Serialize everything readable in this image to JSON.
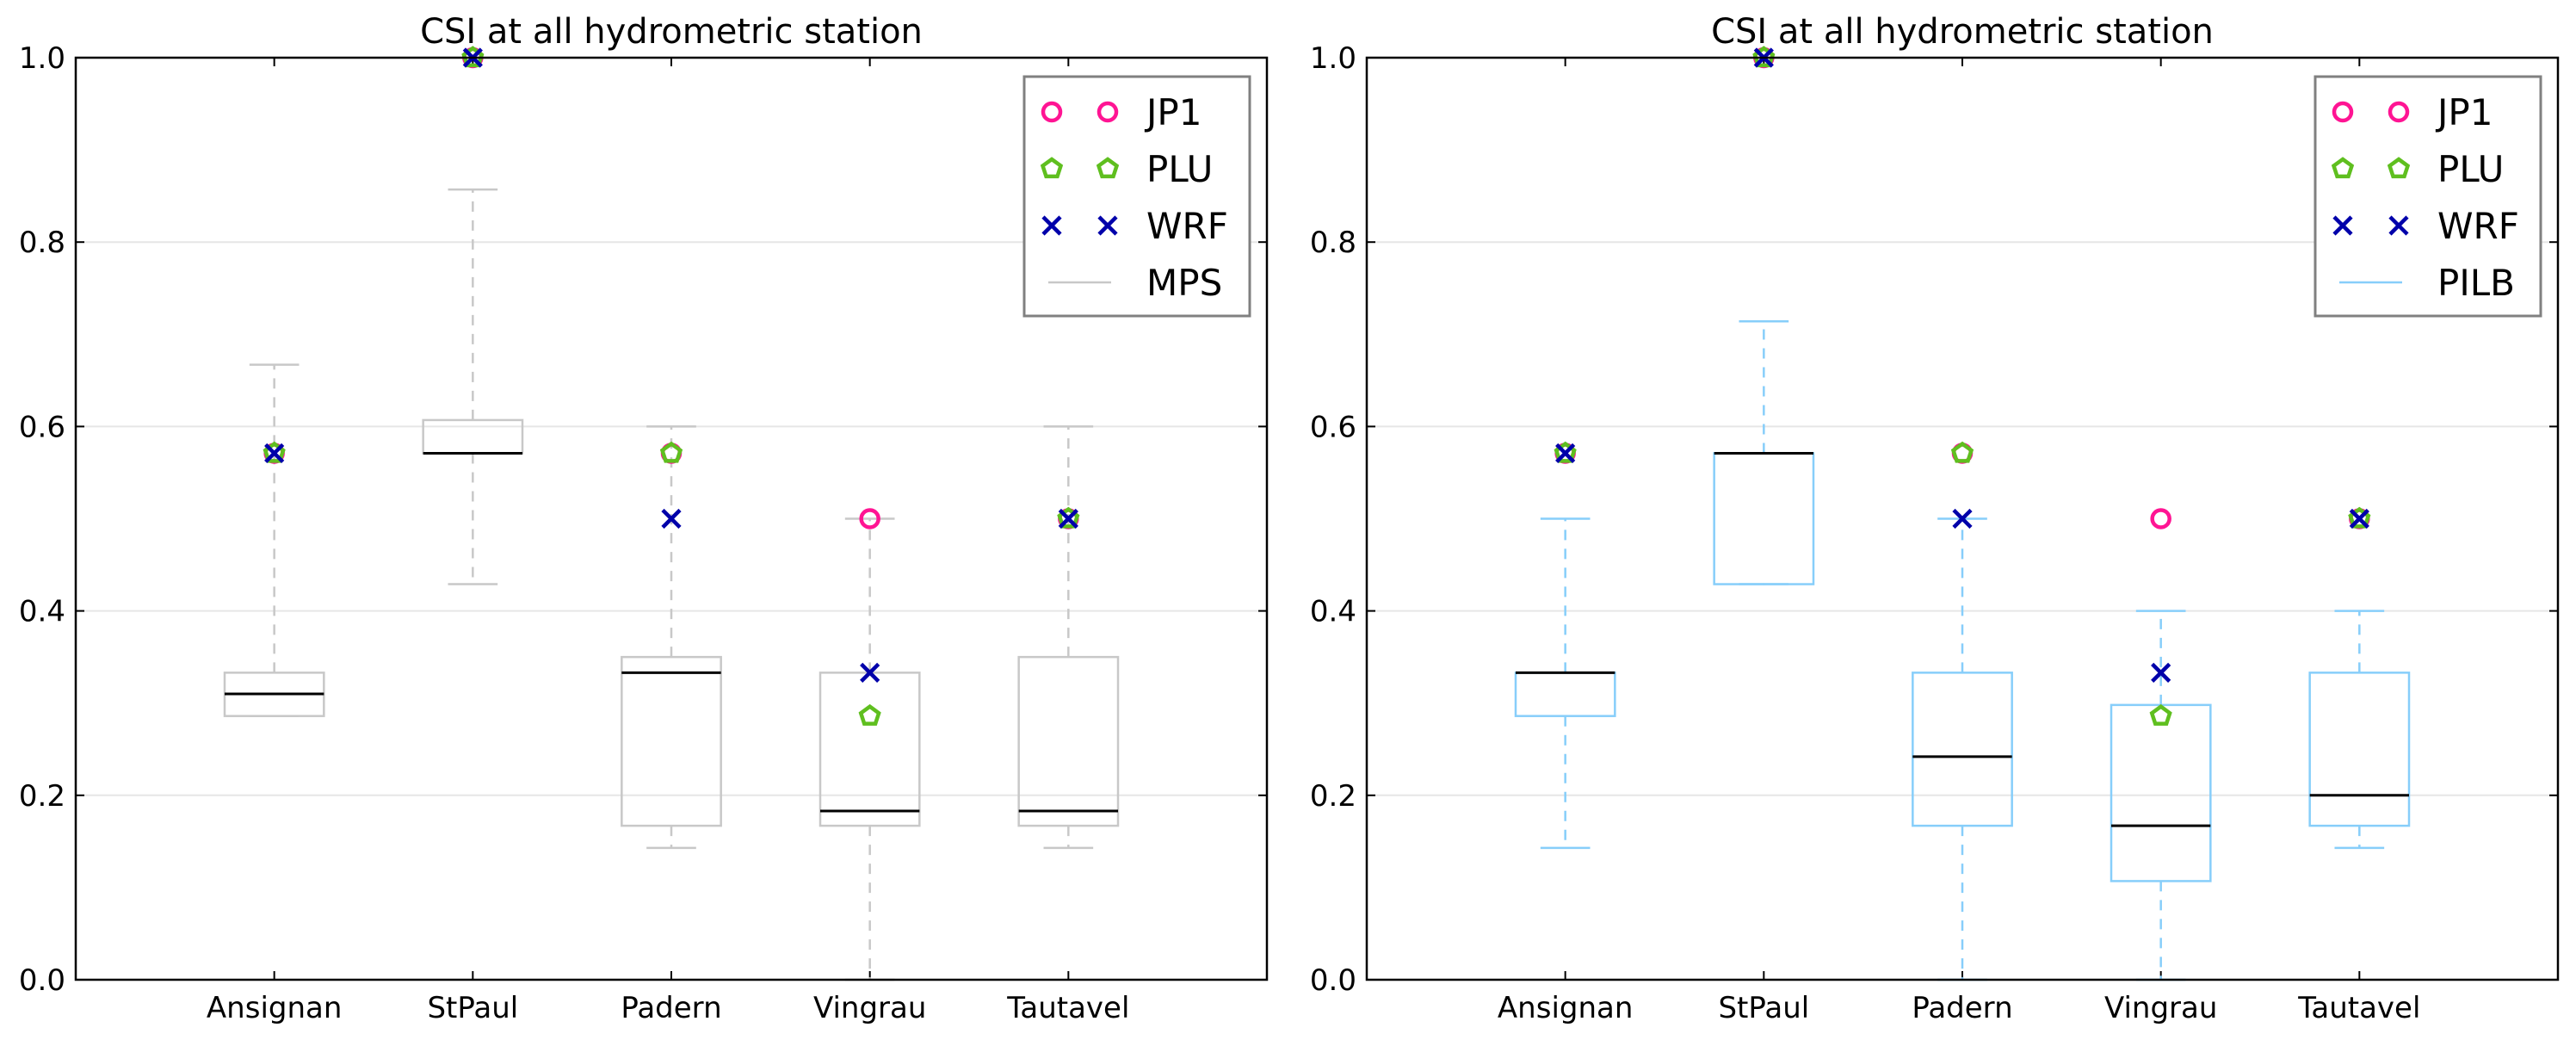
{
  "chart_data": [
    {
      "type": "box",
      "title": "CSI at all hydrometric station",
      "xlabel": "",
      "ylabel": "",
      "ylim": [
        0.0,
        1.0
      ],
      "yticks": [
        "0.0",
        "0.2",
        "0.4",
        "0.6",
        "0.8",
        "1.0"
      ],
      "grid": "horizontal",
      "categories": [
        "Ansignan",
        "StPaul",
        "Padern",
        "Vingrau",
        "Tautavel"
      ],
      "box_series": {
        "name": "MPS",
        "color": "#c8c8c8",
        "boxes": [
          {
            "whisker_low": 0.286,
            "q1": 0.286,
            "median": 0.31,
            "q3": 0.333,
            "whisker_high": 0.667
          },
          {
            "whisker_low": 0.429,
            "q1": 0.571,
            "median": 0.571,
            "q3": 0.607,
            "whisker_high": 0.857
          },
          {
            "whisker_low": 0.143,
            "q1": 0.167,
            "median": 0.333,
            "q3": 0.35,
            "whisker_high": 0.6
          },
          {
            "whisker_low": 0.0,
            "q1": 0.167,
            "median": 0.183,
            "q3": 0.333,
            "whisker_high": 0.5
          },
          {
            "whisker_low": 0.143,
            "q1": 0.167,
            "median": 0.183,
            "q3": 0.35,
            "whisker_high": 0.6
          }
        ]
      },
      "point_series": [
        {
          "name": "JP1",
          "marker": "circle",
          "color": "#ff1493",
          "values": [
            0.571,
            1.0,
            0.571,
            0.5,
            0.5
          ]
        },
        {
          "name": "PLU",
          "marker": "pentagon",
          "color": "#5fbf1f",
          "values": [
            0.571,
            1.0,
            0.571,
            0.286,
            0.5
          ]
        },
        {
          "name": "WRF",
          "marker": "x",
          "color": "#0000aa",
          "values": [
            0.571,
            1.0,
            0.5,
            0.333,
            0.5
          ]
        }
      ],
      "legend": {
        "placement": "top-right",
        "entries": [
          "JP1",
          "PLU",
          "WRF",
          "MPS"
        ]
      }
    },
    {
      "type": "box",
      "title": "CSI at all hydrometric station",
      "xlabel": "",
      "ylabel": "",
      "ylim": [
        0.0,
        1.0
      ],
      "yticks": [
        "0.0",
        "0.2",
        "0.4",
        "0.6",
        "0.8",
        "1.0"
      ],
      "grid": "horizontal",
      "categories": [
        "Ansignan",
        "StPaul",
        "Padern",
        "Vingrau",
        "Tautavel"
      ],
      "box_series": {
        "name": "PILB",
        "color": "#87cefa",
        "boxes": [
          {
            "whisker_low": 0.143,
            "q1": 0.286,
            "median": 0.333,
            "q3": 0.333,
            "whisker_high": 0.5
          },
          {
            "whisker_low": 0.429,
            "q1": 0.429,
            "median": 0.571,
            "q3": 0.571,
            "whisker_high": 0.714
          },
          {
            "whisker_low": 0.0,
            "q1": 0.167,
            "median": 0.242,
            "q3": 0.333,
            "whisker_high": 0.5
          },
          {
            "whisker_low": 0.0,
            "q1": 0.107,
            "median": 0.167,
            "q3": 0.298,
            "whisker_high": 0.4
          },
          {
            "whisker_low": 0.143,
            "q1": 0.167,
            "median": 0.2,
            "q3": 0.333,
            "whisker_high": 0.4
          }
        ]
      },
      "point_series": [
        {
          "name": "JP1",
          "marker": "circle",
          "color": "#ff1493",
          "values": [
            0.571,
            1.0,
            0.571,
            0.5,
            0.5
          ]
        },
        {
          "name": "PLU",
          "marker": "pentagon",
          "color": "#5fbf1f",
          "values": [
            0.571,
            1.0,
            0.571,
            0.286,
            0.5
          ]
        },
        {
          "name": "WRF",
          "marker": "x",
          "color": "#0000aa",
          "values": [
            0.571,
            1.0,
            0.5,
            0.333,
            0.5
          ]
        }
      ],
      "legend": {
        "placement": "top-right",
        "entries": [
          "JP1",
          "PLU",
          "WRF",
          "PILB"
        ]
      }
    }
  ]
}
